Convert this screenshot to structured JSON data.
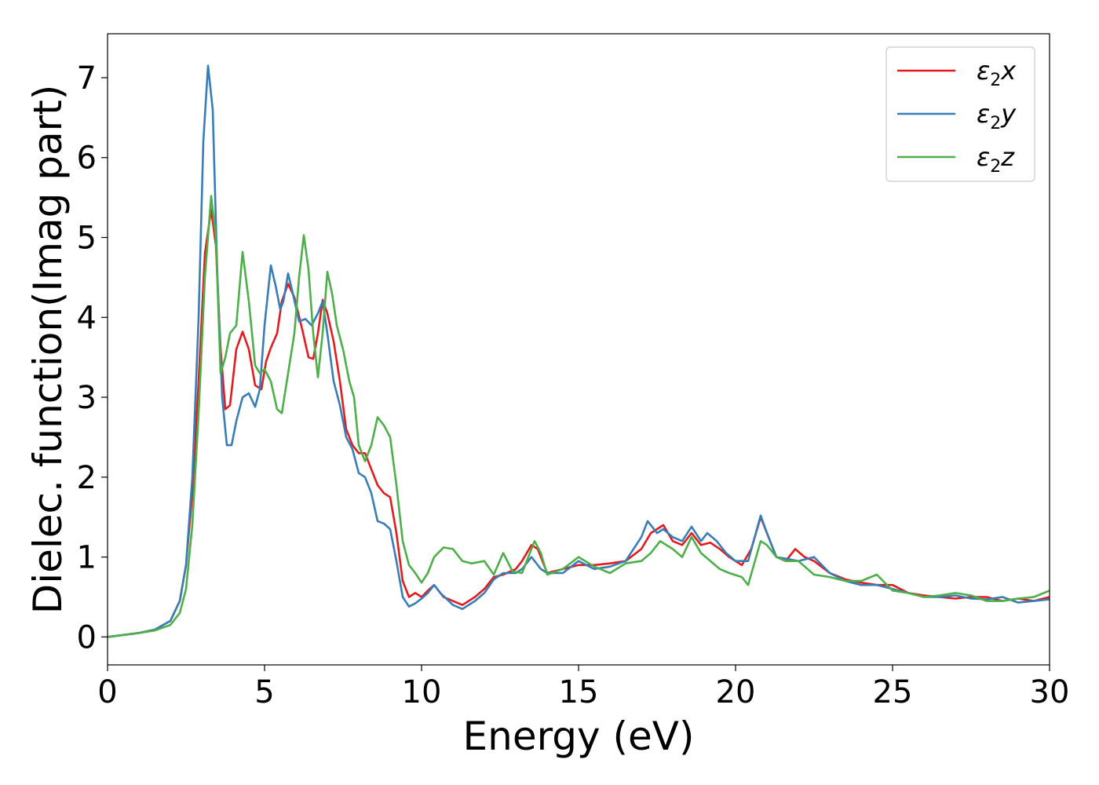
{
  "chart_data": {
    "type": "line",
    "title": "",
    "xlabel": "Energy (eV)",
    "ylabel": "Dielec. function(Imag part)",
    "xlim": [
      0,
      30
    ],
    "ylim": [
      -0.35,
      7.55
    ],
    "xticks": [
      0,
      5,
      10,
      15,
      20,
      25,
      30
    ],
    "yticks": [
      0,
      1,
      2,
      3,
      4,
      5,
      6,
      7
    ],
    "grid": false,
    "legend": "top-right",
    "series": [
      {
        "name": "ε₂x",
        "legend_base": "ε",
        "legend_sub": "2",
        "legend_tail": "x",
        "color": "#e41a1c",
        "points": [
          [
            0,
            0
          ],
          [
            1,
            0.05
          ],
          [
            1.5,
            0.09
          ],
          [
            2,
            0.2
          ],
          [
            2.3,
            0.45
          ],
          [
            2.5,
            0.9
          ],
          [
            2.7,
            1.8
          ],
          [
            2.9,
            3.2
          ],
          [
            3.1,
            4.8
          ],
          [
            3.3,
            5.35
          ],
          [
            3.45,
            4.9
          ],
          [
            3.6,
            3.6
          ],
          [
            3.75,
            2.85
          ],
          [
            3.9,
            2.9
          ],
          [
            4.1,
            3.6
          ],
          [
            4.3,
            3.82
          ],
          [
            4.5,
            3.6
          ],
          [
            4.7,
            3.15
          ],
          [
            4.9,
            3.1
          ],
          [
            5.05,
            3.45
          ],
          [
            5.2,
            3.62
          ],
          [
            5.4,
            3.8
          ],
          [
            5.55,
            4.2
          ],
          [
            5.75,
            4.42
          ],
          [
            5.95,
            4.25
          ],
          [
            6.2,
            3.85
          ],
          [
            6.4,
            3.5
          ],
          [
            6.55,
            3.48
          ],
          [
            6.7,
            3.8
          ],
          [
            6.85,
            4.22
          ],
          [
            7.0,
            4.05
          ],
          [
            7.2,
            3.7
          ],
          [
            7.4,
            3.2
          ],
          [
            7.6,
            2.6
          ],
          [
            7.8,
            2.4
          ],
          [
            8.0,
            2.3
          ],
          [
            8.2,
            2.3
          ],
          [
            8.4,
            2.1
          ],
          [
            8.6,
            1.9
          ],
          [
            8.8,
            1.8
          ],
          [
            9.0,
            1.75
          ],
          [
            9.2,
            1.3
          ],
          [
            9.4,
            0.7
          ],
          [
            9.6,
            0.5
          ],
          [
            9.8,
            0.55
          ],
          [
            10.0,
            0.5
          ],
          [
            10.2,
            0.58
          ],
          [
            10.4,
            0.65
          ],
          [
            10.7,
            0.5
          ],
          [
            11.0,
            0.45
          ],
          [
            11.3,
            0.4
          ],
          [
            11.7,
            0.5
          ],
          [
            12.0,
            0.6
          ],
          [
            12.3,
            0.75
          ],
          [
            12.6,
            0.78
          ],
          [
            13.0,
            0.85
          ],
          [
            13.2,
            0.95
          ],
          [
            13.5,
            1.15
          ],
          [
            13.7,
            1.1
          ],
          [
            14.0,
            0.8
          ],
          [
            14.5,
            0.85
          ],
          [
            15.0,
            0.9
          ],
          [
            15.5,
            0.9
          ],
          [
            16.0,
            0.92
          ],
          [
            16.5,
            0.95
          ],
          [
            17.0,
            1.1
          ],
          [
            17.3,
            1.3
          ],
          [
            17.5,
            1.35
          ],
          [
            17.7,
            1.4
          ],
          [
            18.0,
            1.2
          ],
          [
            18.3,
            1.15
          ],
          [
            18.6,
            1.3
          ],
          [
            18.9,
            1.15
          ],
          [
            19.2,
            1.18
          ],
          [
            19.5,
            1.1
          ],
          [
            19.8,
            1.0
          ],
          [
            20.2,
            0.9
          ],
          [
            20.5,
            1.1
          ],
          [
            20.8,
            1.5
          ],
          [
            21.0,
            1.3
          ],
          [
            21.3,
            1.0
          ],
          [
            21.6,
            0.95
          ],
          [
            21.9,
            1.1
          ],
          [
            22.2,
            1.0
          ],
          [
            22.5,
            0.95
          ],
          [
            23.0,
            0.8
          ],
          [
            23.5,
            0.72
          ],
          [
            24.0,
            0.68
          ],
          [
            24.5,
            0.65
          ],
          [
            25.0,
            0.65
          ],
          [
            25.5,
            0.55
          ],
          [
            26.0,
            0.52
          ],
          [
            26.5,
            0.5
          ],
          [
            27.0,
            0.48
          ],
          [
            27.5,
            0.5
          ],
          [
            28.0,
            0.5
          ],
          [
            28.5,
            0.45
          ],
          [
            29.0,
            0.48
          ],
          [
            29.5,
            0.45
          ],
          [
            30,
            0.5
          ]
        ]
      },
      {
        "name": "ε₂y",
        "legend_base": "ε",
        "legend_sub": "2",
        "legend_tail": "y",
        "color": "#377eb8",
        "points": [
          [
            0,
            0
          ],
          [
            1,
            0.05
          ],
          [
            1.5,
            0.09
          ],
          [
            2,
            0.2
          ],
          [
            2.3,
            0.45
          ],
          [
            2.5,
            0.9
          ],
          [
            2.7,
            2.0
          ],
          [
            2.9,
            4.0
          ],
          [
            3.05,
            6.2
          ],
          [
            3.2,
            7.15
          ],
          [
            3.35,
            6.6
          ],
          [
            3.5,
            4.5
          ],
          [
            3.65,
            3.0
          ],
          [
            3.8,
            2.4
          ],
          [
            3.95,
            2.4
          ],
          [
            4.1,
            2.7
          ],
          [
            4.3,
            3.0
          ],
          [
            4.5,
            3.05
          ],
          [
            4.7,
            2.88
          ],
          [
            4.85,
            3.1
          ],
          [
            5.0,
            3.9
          ],
          [
            5.2,
            4.65
          ],
          [
            5.35,
            4.4
          ],
          [
            5.5,
            4.1
          ],
          [
            5.6,
            4.2
          ],
          [
            5.75,
            4.55
          ],
          [
            5.9,
            4.3
          ],
          [
            6.1,
            3.95
          ],
          [
            6.3,
            3.98
          ],
          [
            6.5,
            3.9
          ],
          [
            6.7,
            4.05
          ],
          [
            6.85,
            4.2
          ],
          [
            7.0,
            3.8
          ],
          [
            7.2,
            3.2
          ],
          [
            7.4,
            2.9
          ],
          [
            7.6,
            2.5
          ],
          [
            7.8,
            2.35
          ],
          [
            8.0,
            2.05
          ],
          [
            8.2,
            2.0
          ],
          [
            8.4,
            1.8
          ],
          [
            8.6,
            1.45
          ],
          [
            8.8,
            1.42
          ],
          [
            9.0,
            1.35
          ],
          [
            9.2,
            0.95
          ],
          [
            9.4,
            0.5
          ],
          [
            9.6,
            0.38
          ],
          [
            9.8,
            0.42
          ],
          [
            10.0,
            0.48
          ],
          [
            10.2,
            0.55
          ],
          [
            10.4,
            0.65
          ],
          [
            10.6,
            0.55
          ],
          [
            11.0,
            0.4
          ],
          [
            11.3,
            0.35
          ],
          [
            11.7,
            0.45
          ],
          [
            12.0,
            0.55
          ],
          [
            12.3,
            0.72
          ],
          [
            12.6,
            0.8
          ],
          [
            13.0,
            0.8
          ],
          [
            13.2,
            0.85
          ],
          [
            13.5,
            1.0
          ],
          [
            13.8,
            0.85
          ],
          [
            14.0,
            0.8
          ],
          [
            14.5,
            0.8
          ],
          [
            15.0,
            0.95
          ],
          [
            15.5,
            0.85
          ],
          [
            16.0,
            0.88
          ],
          [
            16.5,
            0.95
          ],
          [
            17.0,
            1.25
          ],
          [
            17.2,
            1.45
          ],
          [
            17.5,
            1.3
          ],
          [
            17.7,
            1.35
          ],
          [
            18.0,
            1.25
          ],
          [
            18.3,
            1.2
          ],
          [
            18.6,
            1.38
          ],
          [
            18.9,
            1.2
          ],
          [
            19.1,
            1.3
          ],
          [
            19.4,
            1.2
          ],
          [
            19.7,
            1.05
          ],
          [
            20.0,
            0.95
          ],
          [
            20.4,
            0.95
          ],
          [
            20.8,
            1.52
          ],
          [
            21.0,
            1.3
          ],
          [
            21.3,
            1.0
          ],
          [
            21.6,
            0.98
          ],
          [
            22.0,
            0.95
          ],
          [
            22.5,
            1.0
          ],
          [
            23.0,
            0.8
          ],
          [
            23.5,
            0.7
          ],
          [
            24.0,
            0.65
          ],
          [
            24.5,
            0.65
          ],
          [
            25.0,
            0.6
          ],
          [
            25.5,
            0.55
          ],
          [
            26.0,
            0.5
          ],
          [
            26.5,
            0.5
          ],
          [
            27.0,
            0.52
          ],
          [
            27.5,
            0.48
          ],
          [
            28.0,
            0.47
          ],
          [
            28.5,
            0.5
          ],
          [
            29.0,
            0.43
          ],
          [
            29.5,
            0.45
          ],
          [
            30,
            0.47
          ]
        ]
      },
      {
        "name": "ε₂z",
        "legend_base": "ε",
        "legend_sub": "2",
        "legend_tail": "z",
        "color": "#4daf4a",
        "points": [
          [
            0,
            0
          ],
          [
            1,
            0.05
          ],
          [
            1.5,
            0.08
          ],
          [
            2,
            0.15
          ],
          [
            2.3,
            0.3
          ],
          [
            2.5,
            0.6
          ],
          [
            2.7,
            1.4
          ],
          [
            2.9,
            2.8
          ],
          [
            3.1,
            4.5
          ],
          [
            3.3,
            5.52
          ],
          [
            3.45,
            5.0
          ],
          [
            3.6,
            3.3
          ],
          [
            3.75,
            3.5
          ],
          [
            3.9,
            3.8
          ],
          [
            4.1,
            3.9
          ],
          [
            4.3,
            4.82
          ],
          [
            4.5,
            4.2
          ],
          [
            4.7,
            3.4
          ],
          [
            4.85,
            3.3
          ],
          [
            5.0,
            3.35
          ],
          [
            5.2,
            3.2
          ],
          [
            5.4,
            2.85
          ],
          [
            5.55,
            2.8
          ],
          [
            5.75,
            3.3
          ],
          [
            5.95,
            3.8
          ],
          [
            6.1,
            4.5
          ],
          [
            6.25,
            5.03
          ],
          [
            6.4,
            4.6
          ],
          [
            6.55,
            3.8
          ],
          [
            6.7,
            3.25
          ],
          [
            6.85,
            3.8
          ],
          [
            7.0,
            4.57
          ],
          [
            7.15,
            4.3
          ],
          [
            7.3,
            3.9
          ],
          [
            7.5,
            3.6
          ],
          [
            7.7,
            3.2
          ],
          [
            7.85,
            3.0
          ],
          [
            8.0,
            2.4
          ],
          [
            8.2,
            2.2
          ],
          [
            8.4,
            2.4
          ],
          [
            8.6,
            2.75
          ],
          [
            8.8,
            2.65
          ],
          [
            9.0,
            2.5
          ],
          [
            9.2,
            1.9
          ],
          [
            9.4,
            1.2
          ],
          [
            9.6,
            0.9
          ],
          [
            9.8,
            0.8
          ],
          [
            10.0,
            0.68
          ],
          [
            10.2,
            0.8
          ],
          [
            10.4,
            1.0
          ],
          [
            10.7,
            1.12
          ],
          [
            11.0,
            1.1
          ],
          [
            11.3,
            0.95
          ],
          [
            11.6,
            0.92
          ],
          [
            12.0,
            0.95
          ],
          [
            12.3,
            0.78
          ],
          [
            12.6,
            1.05
          ],
          [
            12.9,
            0.82
          ],
          [
            13.2,
            0.8
          ],
          [
            13.6,
            1.2
          ],
          [
            13.8,
            1.05
          ],
          [
            14.0,
            0.78
          ],
          [
            14.5,
            0.85
          ],
          [
            15.0,
            1.0
          ],
          [
            15.5,
            0.88
          ],
          [
            16.0,
            0.8
          ],
          [
            16.5,
            0.92
          ],
          [
            17.0,
            0.95
          ],
          [
            17.3,
            1.05
          ],
          [
            17.6,
            1.2
          ],
          [
            18.0,
            1.1
          ],
          [
            18.3,
            1.0
          ],
          [
            18.6,
            1.25
          ],
          [
            18.9,
            1.05
          ],
          [
            19.2,
            0.95
          ],
          [
            19.5,
            0.85
          ],
          [
            19.8,
            0.8
          ],
          [
            20.2,
            0.75
          ],
          [
            20.4,
            0.65
          ],
          [
            20.8,
            1.2
          ],
          [
            21.0,
            1.15
          ],
          [
            21.3,
            1.0
          ],
          [
            21.6,
            0.95
          ],
          [
            22.0,
            0.95
          ],
          [
            22.5,
            0.78
          ],
          [
            23.0,
            0.75
          ],
          [
            23.5,
            0.7
          ],
          [
            24.0,
            0.7
          ],
          [
            24.5,
            0.78
          ],
          [
            25.0,
            0.58
          ],
          [
            25.5,
            0.55
          ],
          [
            26.0,
            0.5
          ],
          [
            26.5,
            0.52
          ],
          [
            27.0,
            0.55
          ],
          [
            27.5,
            0.52
          ],
          [
            28.0,
            0.45
          ],
          [
            28.5,
            0.45
          ],
          [
            29.0,
            0.48
          ],
          [
            29.5,
            0.5
          ],
          [
            30,
            0.58
          ]
        ]
      }
    ]
  }
}
